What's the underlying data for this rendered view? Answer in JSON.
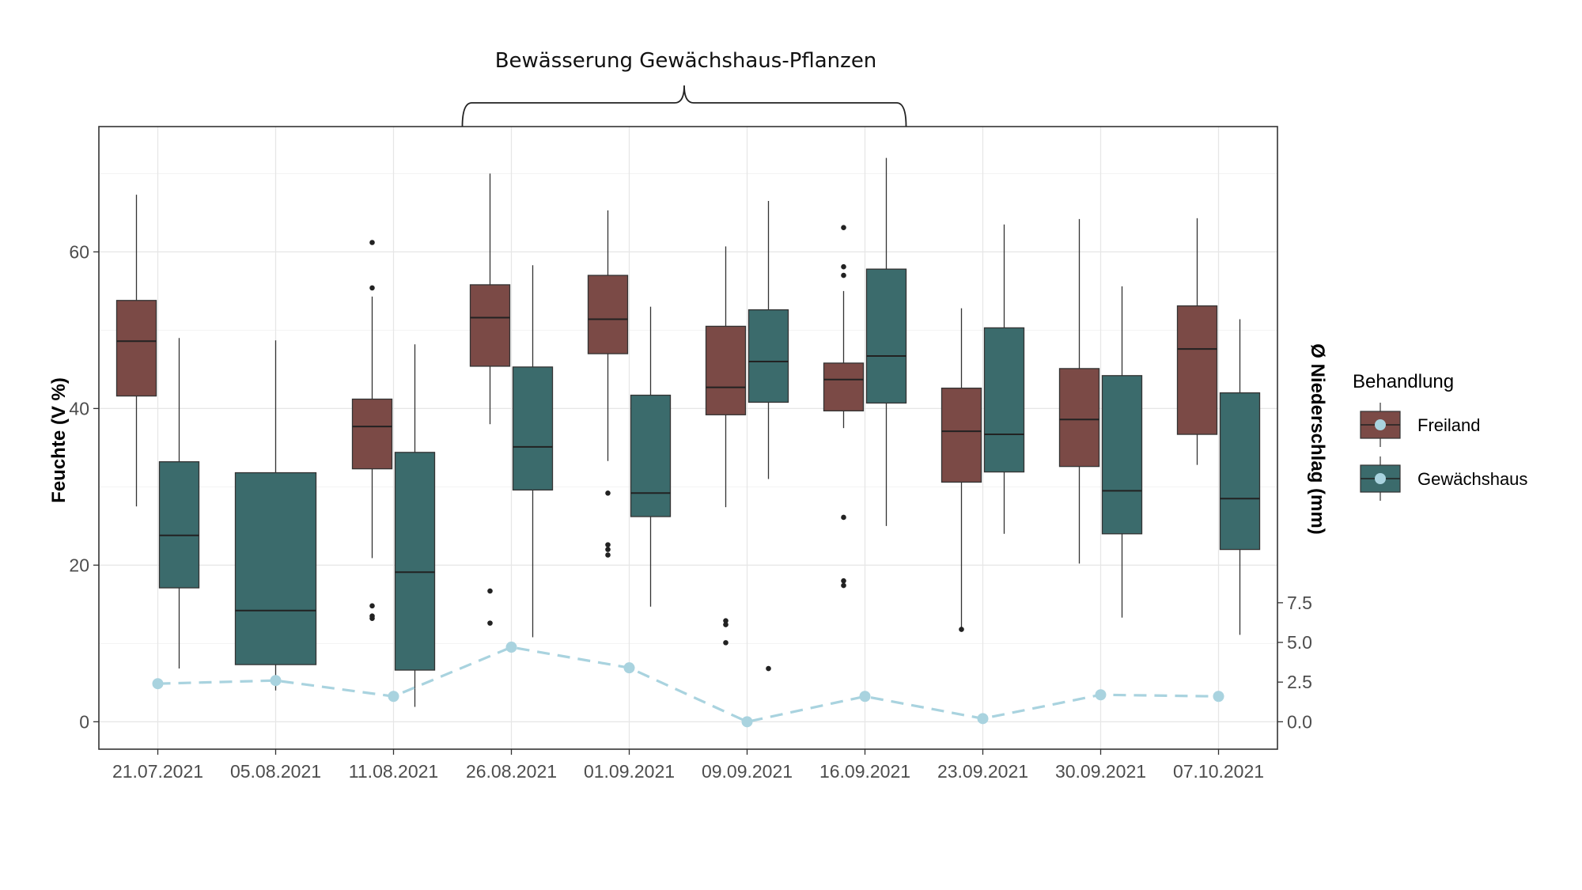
{
  "chart_data": {
    "type": "boxplot",
    "annotation": "Bewässerung Gewächshaus-Pflanzen",
    "annotation_span": [
      "26.08.2021",
      "16.09.2021"
    ],
    "ylabel": "Feuchte (V %)",
    "y2label": "Ø Niederschlag (mm)",
    "ylim": [
      -3.5,
      76
    ],
    "yticks": [
      0,
      20,
      40,
      60
    ],
    "y2ticks": [
      "0.0",
      "2.5",
      "5.0",
      "7.5"
    ],
    "grid": true,
    "legend": {
      "title": "Behandlung",
      "position": "right",
      "items": [
        {
          "name": "Freiland",
          "color": "#7b4a46"
        },
        {
          "name": "Gewächshaus",
          "color": "#3b6b6c"
        }
      ]
    },
    "categories": [
      "21.07.2021",
      "05.08.2021",
      "11.08.2021",
      "26.08.2021",
      "01.09.2021",
      "09.09.2021",
      "16.09.2021",
      "23.09.2021",
      "30.09.2021",
      "07.10.2021"
    ],
    "series": [
      {
        "name": "Freiland",
        "color": "#7b4a46",
        "boxes": [
          {
            "category": "21.07.2021",
            "min": 27.5,
            "q1": 41.6,
            "median": 48.6,
            "q3": 53.8,
            "max": 67.3,
            "outliers": []
          },
          {
            "category": "11.08.2021",
            "min": 20.9,
            "q1": 32.3,
            "median": 37.7,
            "q3": 41.2,
            "max": 54.3,
            "outliers": [
              61.2,
              55.4,
              14.8,
              13.5,
              13.2
            ]
          },
          {
            "category": "26.08.2021",
            "min": 38.0,
            "q1": 45.4,
            "median": 51.6,
            "q3": 55.8,
            "max": 70.0,
            "outliers": [
              16.7,
              12.6
            ]
          },
          {
            "category": "01.09.2021",
            "min": 33.3,
            "q1": 47.0,
            "median": 51.4,
            "q3": 57.0,
            "max": 65.3,
            "outliers": [
              29.2,
              22.6,
              22.0,
              21.3
            ]
          },
          {
            "category": "09.09.2021",
            "min": 27.4,
            "q1": 39.2,
            "median": 42.7,
            "q3": 50.5,
            "max": 60.7,
            "outliers": [
              12.9,
              12.4,
              10.1
            ]
          },
          {
            "category": "16.09.2021",
            "min": 37.5,
            "q1": 39.7,
            "median": 43.7,
            "q3": 45.8,
            "max": 55.0,
            "outliers": [
              63.1,
              58.1,
              57.0,
              26.1,
              18.0,
              17.4
            ]
          },
          {
            "category": "23.09.2021",
            "min": 11.8,
            "q1": 30.6,
            "median": 37.1,
            "q3": 42.6,
            "max": 52.8,
            "outliers": [
              11.8
            ]
          },
          {
            "category": "30.09.2021",
            "min": 20.2,
            "q1": 32.6,
            "median": 38.6,
            "q3": 45.1,
            "max": 64.2,
            "outliers": []
          },
          {
            "category": "07.10.2021",
            "min": 32.8,
            "q1": 36.7,
            "median": 47.6,
            "q3": 53.1,
            "max": 64.3,
            "outliers": []
          }
        ]
      },
      {
        "name": "Gewächshaus",
        "color": "#3b6b6c",
        "boxes": [
          {
            "category": "21.07.2021",
            "min": 6.8,
            "q1": 17.1,
            "median": 23.8,
            "q3": 33.2,
            "max": 49.0,
            "outliers": []
          },
          {
            "category": "05.08.2021",
            "min": 4.0,
            "q1": 7.3,
            "median": 14.2,
            "q3": 31.8,
            "max": 48.7,
            "outliers": []
          },
          {
            "category": "11.08.2021",
            "min": 1.9,
            "q1": 6.6,
            "median": 19.1,
            "q3": 34.4,
            "max": 48.2,
            "outliers": []
          },
          {
            "category": "26.08.2021",
            "min": 10.8,
            "q1": 29.6,
            "median": 35.1,
            "q3": 45.3,
            "max": 58.3,
            "outliers": []
          },
          {
            "category": "01.09.2021",
            "min": 14.7,
            "q1": 26.2,
            "median": 29.2,
            "q3": 41.7,
            "max": 53.0,
            "outliers": []
          },
          {
            "category": "09.09.2021",
            "min": 31.0,
            "q1": 40.8,
            "median": 46.0,
            "q3": 52.6,
            "max": 66.5,
            "outliers": [
              6.8
            ]
          },
          {
            "category": "16.09.2021",
            "min": 25.0,
            "q1": 40.7,
            "median": 46.7,
            "q3": 57.8,
            "max": 72.0,
            "outliers": []
          },
          {
            "category": "23.09.2021",
            "min": 24.0,
            "q1": 31.9,
            "median": 36.7,
            "q3": 50.3,
            "max": 63.5,
            "outliers": []
          },
          {
            "category": "30.09.2021",
            "min": 13.3,
            "q1": 24.0,
            "median": 29.5,
            "q3": 44.2,
            "max": 55.6,
            "outliers": []
          },
          {
            "category": "07.10.2021",
            "min": 11.1,
            "q1": 22.0,
            "median": 28.5,
            "q3": 42.0,
            "max": 51.4,
            "outliers": []
          }
        ]
      },
      {
        "name": "Ø Niederschlag (mm)",
        "type": "line",
        "style": "dashed",
        "axis": "secondary",
        "color": "#a9d3df",
        "values": [
          2.4,
          2.6,
          1.6,
          4.7,
          3.4,
          0.0,
          1.6,
          0.2,
          1.7,
          1.6
        ]
      }
    ]
  }
}
